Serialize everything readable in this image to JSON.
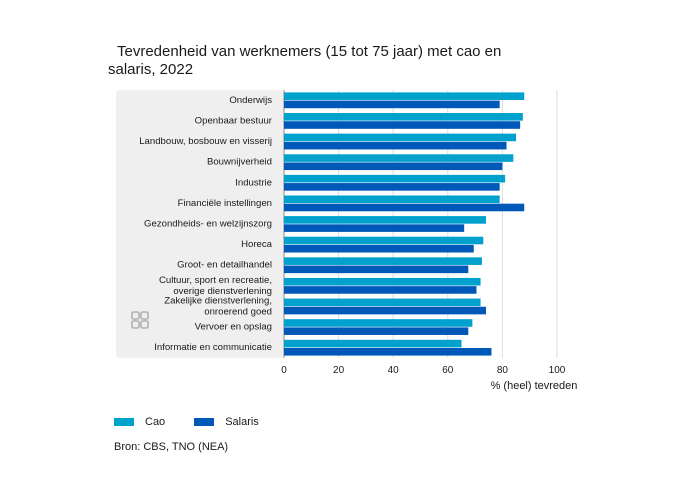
{
  "title_line1": "Tevredenheid van werknemers (15 tot 75 jaar) met cao en",
  "title_line2": "salaris, 2022",
  "source": "Bron: CBS, TNO (NEA)",
  "colors": {
    "cao": "#00a1cd",
    "salaris": "#0058b8",
    "panel": "#efefef",
    "grid": "#dcdcdc"
  },
  "chart_data": {
    "type": "bar",
    "orientation": "horizontal",
    "categories": [
      [
        "Onderwijs"
      ],
      [
        "Openbaar bestuur"
      ],
      [
        "Landbouw, bosbouw en visserij"
      ],
      [
        "Bouwnijverheid"
      ],
      [
        "Industrie"
      ],
      [
        "Financiële instellingen"
      ],
      [
        "Gezondheids- en welzijnszorg"
      ],
      [
        "Horeca"
      ],
      [
        "Groot- en detailhandel"
      ],
      [
        "Cultuur, sport en recreatie,",
        "overige dienstverlening"
      ],
      [
        "Zakelijke dienstverlening,",
        "onroerend goed"
      ],
      [
        "Vervoer en opslag"
      ],
      [
        "Informatie en communicatie"
      ]
    ],
    "series": [
      {
        "name": "Cao",
        "values": [
          88,
          87.5,
          85,
          84,
          81,
          79,
          74,
          73,
          72.5,
          72,
          72,
          69,
          65
        ]
      },
      {
        "name": "Salaris",
        "values": [
          79,
          86.5,
          81.5,
          80,
          79,
          88,
          66,
          69.5,
          67.5,
          70.5,
          74,
          67.5,
          76
        ]
      }
    ],
    "xlabel": "% (heel) tevreden",
    "xlim": [
      0,
      100
    ],
    "xticks": [
      0,
      20,
      40,
      60,
      80,
      100
    ],
    "grid": true,
    "legend": "bottom-left"
  }
}
